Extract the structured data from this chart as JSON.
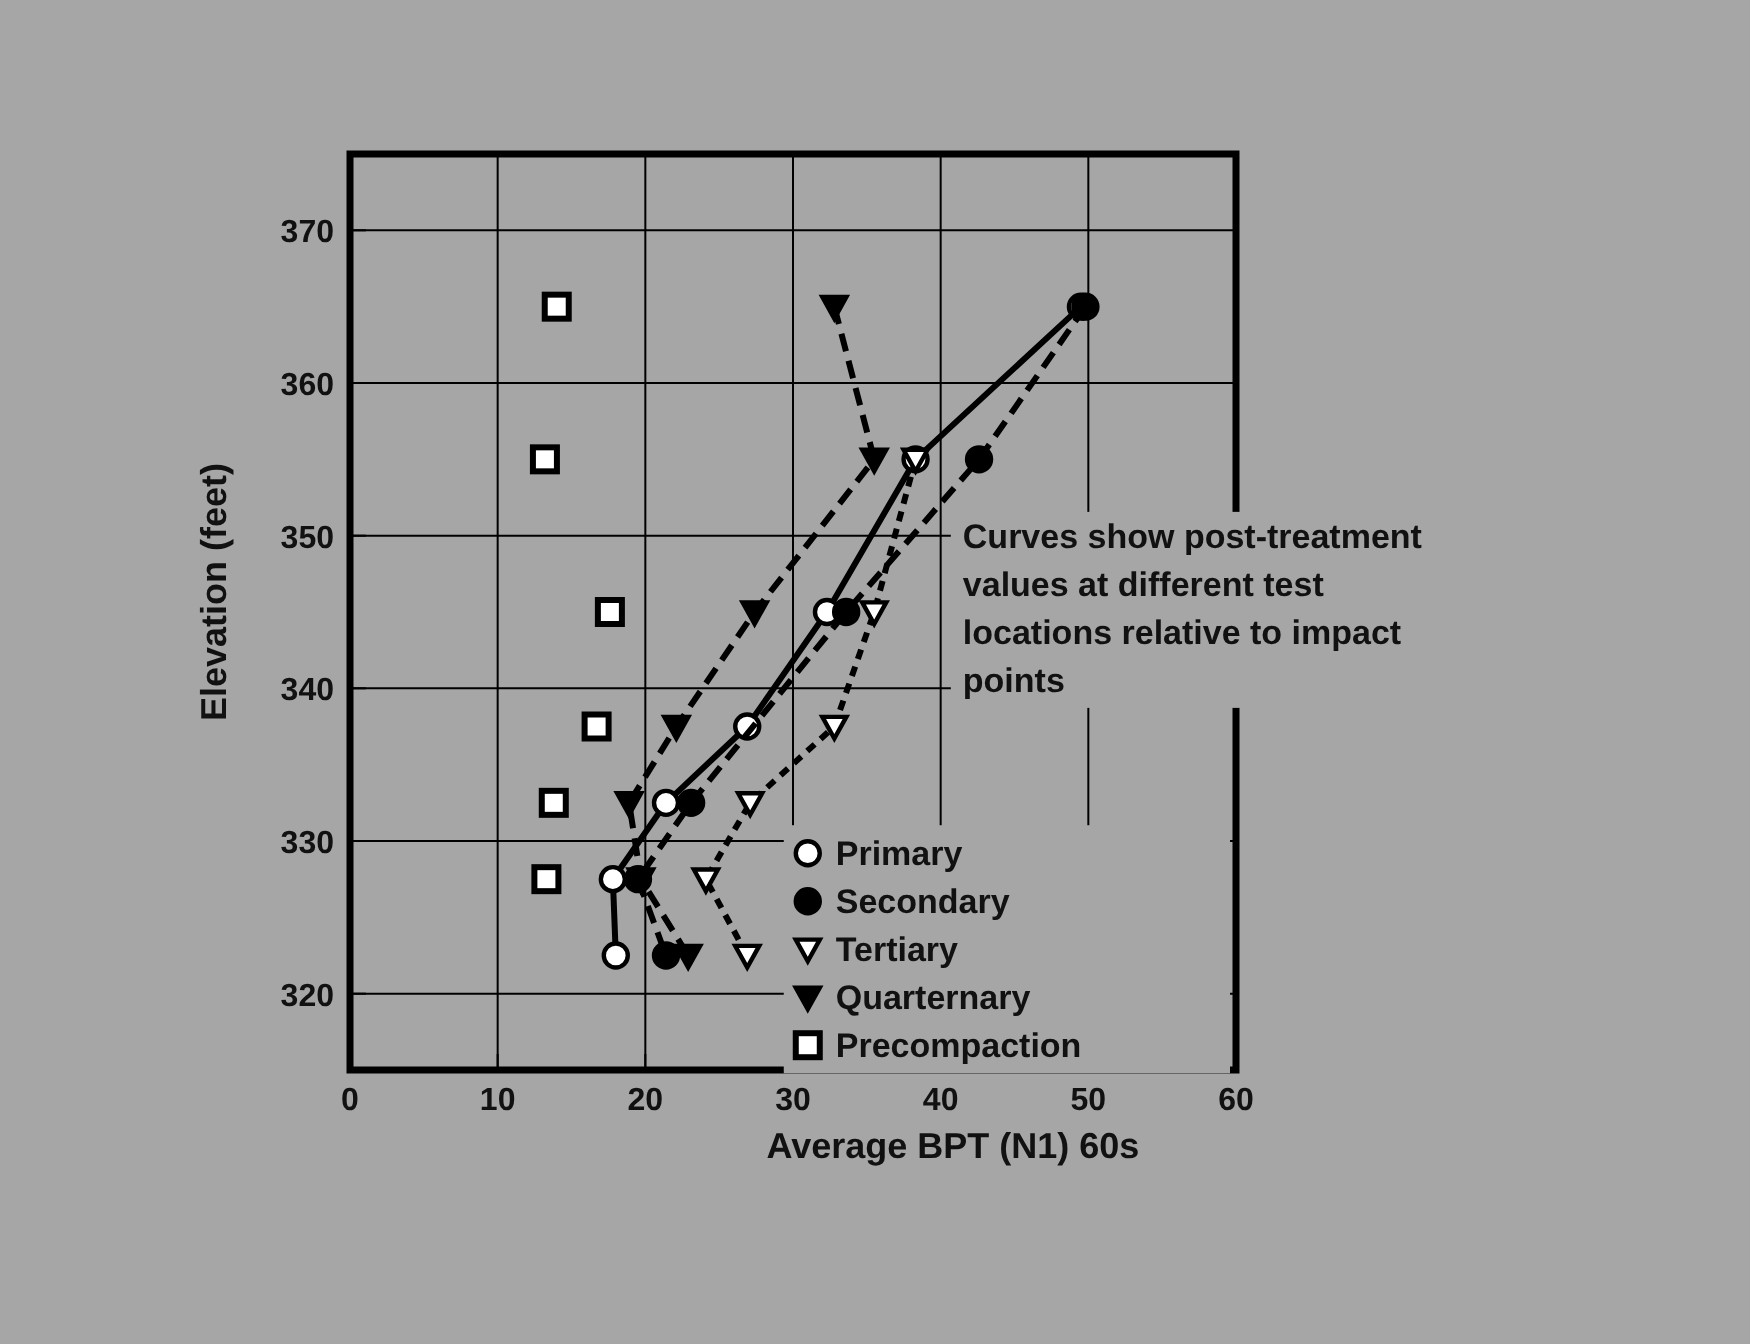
{
  "chart_data": {
    "type": "line",
    "xlabel": "Average BPT (N1) 60s",
    "ylabel": "Elevation (feet)",
    "xlim": [
      0,
      60
    ],
    "xticks": [
      0,
      10,
      20,
      30,
      40,
      50,
      60
    ],
    "ylim": [
      315,
      375
    ],
    "yticks": [
      320,
      330,
      340,
      350,
      360,
      370
    ],
    "grid": true,
    "legend": "bottom right",
    "annotations": [
      "Curves show post-treatment values at different test locations relative to impact points"
    ],
    "series": [
      {
        "name": "Primary",
        "color": "#ffffff",
        "marker": "circle",
        "line_style": "solid",
        "x": [
          49.5,
          38.3,
          32.3,
          26.9,
          21.4,
          17.8,
          18.0
        ],
        "values": [
          365,
          355,
          345,
          337.5,
          332.5,
          327.5,
          322.5
        ]
      },
      {
        "name": "Secondary",
        "color": "#000000",
        "marker": "circle",
        "line_style": "dashed",
        "x": [
          49.8,
          42.6,
          33.6,
          23.1,
          19.5,
          21.4
        ],
        "values": [
          365,
          355,
          345,
          332.5,
          327.5,
          322.5
        ]
      },
      {
        "name": "Tertiary",
        "color": "#ffffff",
        "marker": "triangle",
        "line_style": "dotted",
        "x": [
          38.3,
          35.5,
          32.8,
          27.1,
          24.1,
          26.9
        ],
        "values": [
          355,
          345,
          337.5,
          332.5,
          327.5,
          322.5
        ]
      },
      {
        "name": "Quarternary",
        "color": "#000000",
        "marker": "triangle",
        "line_style": "dashed",
        "x": [
          32.8,
          35.5,
          27.4,
          22.1,
          18.9,
          19.7,
          22.9
        ],
        "values": [
          365,
          355,
          345,
          337.5,
          332.5,
          327.5,
          322.5
        ]
      },
      {
        "name": "Precompaction",
        "type": "scatter",
        "color": "#ffffff",
        "marker": "square",
        "x": [
          14.0,
          13.2,
          17.6,
          16.7,
          13.8,
          13.3
        ],
        "values": [
          365,
          355,
          345,
          337.5,
          332.5,
          327.5
        ]
      }
    ]
  }
}
